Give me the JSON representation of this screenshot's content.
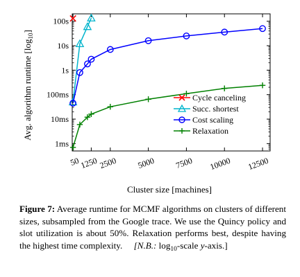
{
  "chart_data": {
    "type": "line",
    "xlabel": "Cluster size [machines]",
    "ylabel": "Avg. algorithm runtime [log",
    "ylabel_sub": "10",
    "ylabel_close": "]",
    "y_scale": "log10",
    "ylim_seconds": [
      0.0005,
      200
    ],
    "xlim": [
      0,
      13000
    ],
    "x_ticks": [
      50,
      1250,
      2500,
      5000,
      7500,
      10000,
      12500
    ],
    "x_tick_labels": [
      "50",
      "1250",
      "2500",
      "5000",
      "7500",
      "10000",
      "12500"
    ],
    "y_ticks_seconds": [
      0.001,
      0.01,
      0.1,
      1,
      10,
      100
    ],
    "y_tick_labels": [
      "1ms",
      "10ms",
      "100ms",
      "1s",
      "10s",
      "100s"
    ],
    "grid": false,
    "legend_position": "bottom-right",
    "series": [
      {
        "name": "Cycle canceling",
        "color": "#ff0000",
        "marker": "x",
        "points": [
          [
            50,
            130
          ]
        ]
      },
      {
        "name": "Succ. shortest",
        "color": "#00b4cc",
        "marker": "triangle",
        "points": [
          [
            50,
            0.05
          ],
          [
            500,
            12
          ],
          [
            1000,
            60
          ],
          [
            1250,
            135
          ]
        ]
      },
      {
        "name": "Cost scaling",
        "color": "#0000ff",
        "marker": "circle",
        "points": [
          [
            50,
            0.045
          ],
          [
            500,
            0.8
          ],
          [
            1000,
            1.8
          ],
          [
            1250,
            2.8
          ],
          [
            2500,
            7
          ],
          [
            5000,
            16
          ],
          [
            7500,
            25
          ],
          [
            10000,
            36
          ],
          [
            12500,
            50
          ]
        ]
      },
      {
        "name": "Relaxation",
        "color": "#008000",
        "marker": "plus",
        "points": [
          [
            50,
            0.0007
          ],
          [
            500,
            0.006
          ],
          [
            1000,
            0.012
          ],
          [
            1250,
            0.016
          ],
          [
            2500,
            0.032
          ],
          [
            5000,
            0.065
          ],
          [
            7500,
            0.11
          ],
          [
            10000,
            0.18
          ],
          [
            12500,
            0.24
          ]
        ]
      }
    ]
  },
  "caption": {
    "label": "Figure 7:",
    "text_part1": " Average runtime for MCMF algorithms on clusters of different sizes, subsampled from the Google trace. We use the Quincy policy and slot utilization is about 50%. Relaxation performs best, despite having the highest time complexity.",
    "nb_label": "[N.B.:",
    "nb_log": " log",
    "nb_sub": "10",
    "nb_scale": "-scale",
    "nb_y": "y",
    "nb_axis": "-axis.]"
  }
}
